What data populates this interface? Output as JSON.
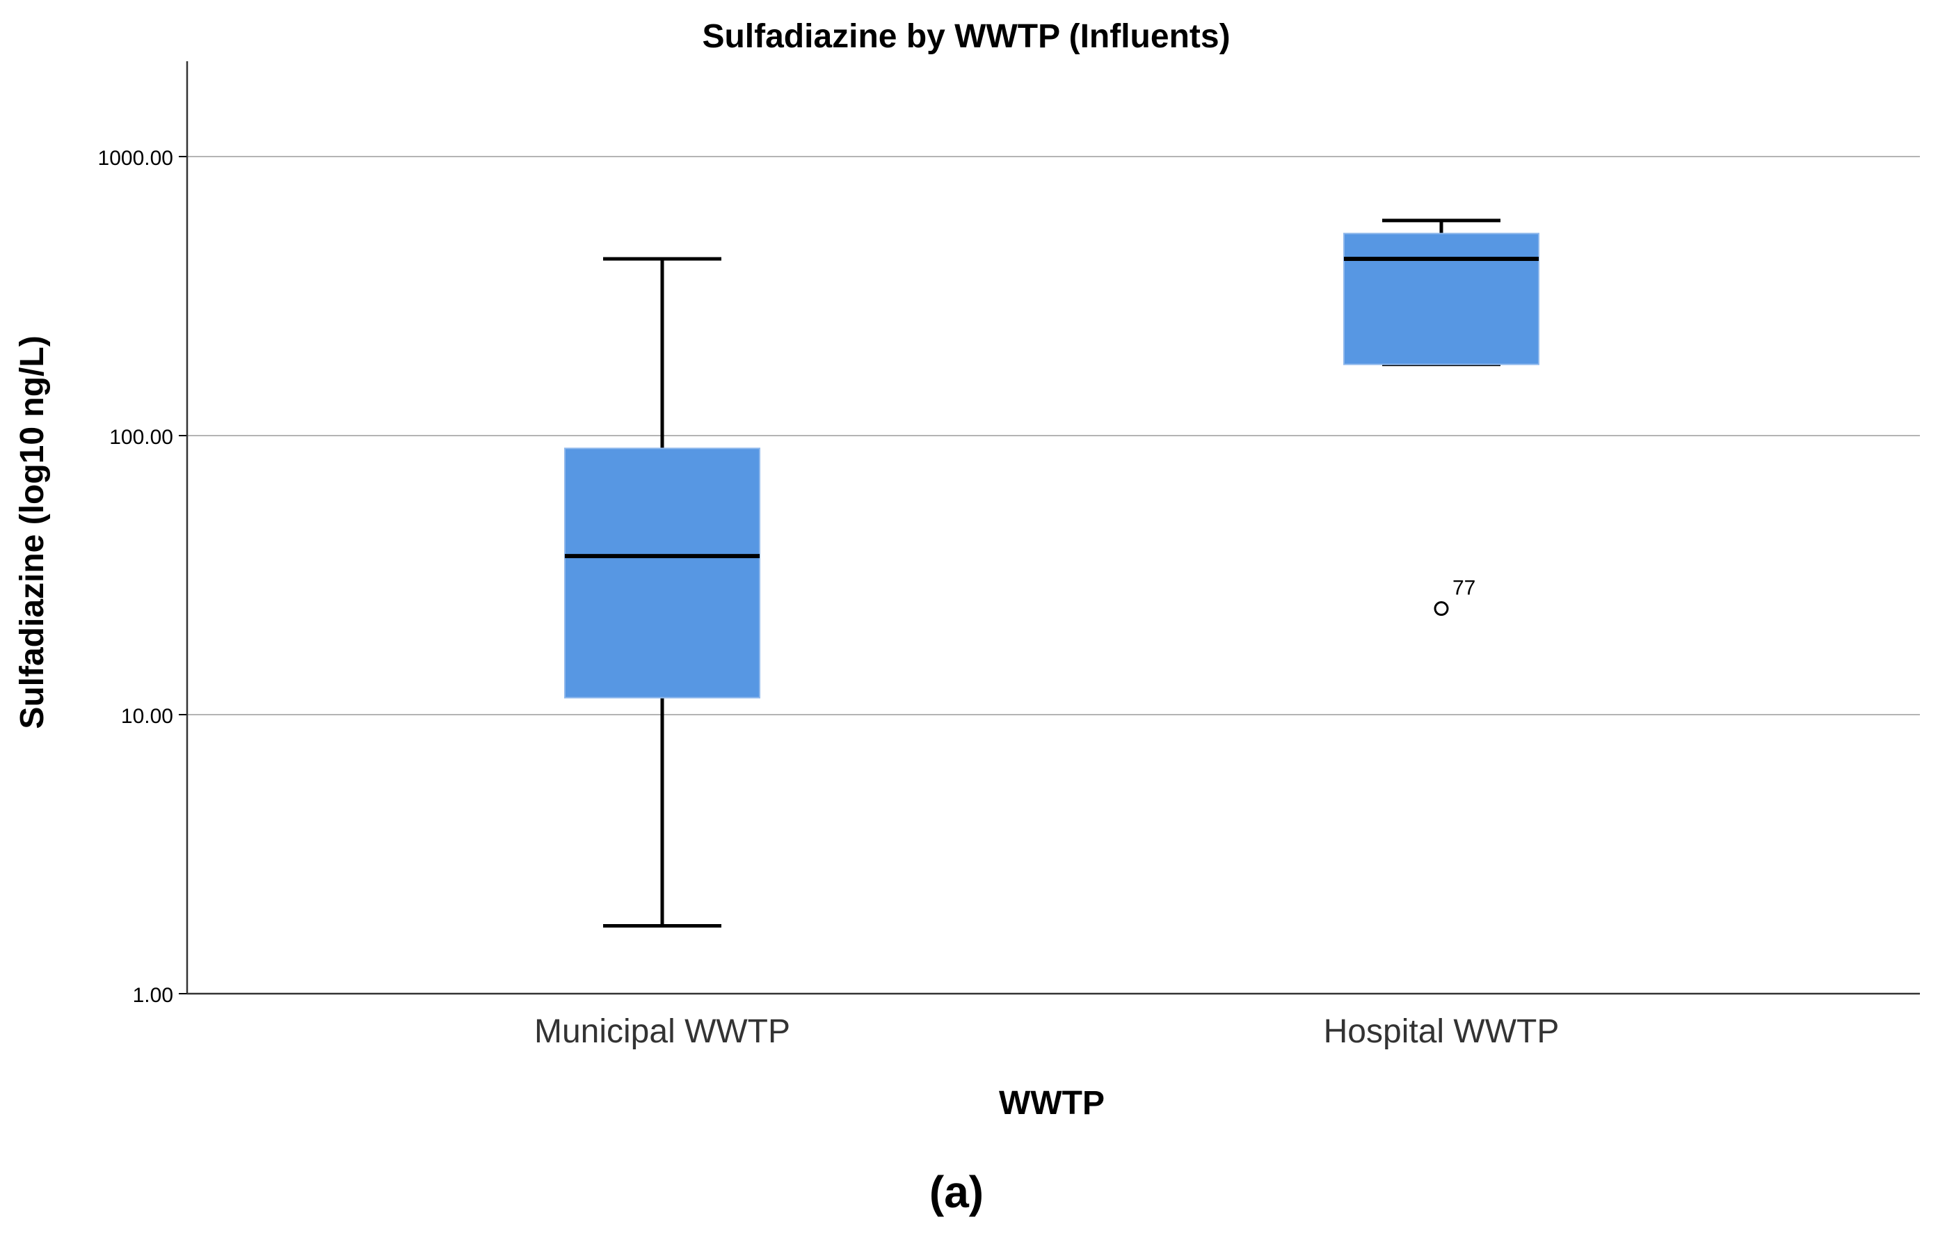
{
  "chart_data": {
    "type": "boxplot",
    "title": "Sulfadiazine by WWTP (Influents)",
    "xlabel": "WWTP",
    "ylabel": "Sulfadiazine (log10 ng/L)",
    "yscale": "log10",
    "ylim": [
      1,
      2000
    ],
    "yticks": [
      {
        "value": 1,
        "label": "1.00"
      },
      {
        "value": 10,
        "label": "10.00"
      },
      {
        "value": 100,
        "label": "100.00"
      },
      {
        "value": 1000,
        "label": "1000.00"
      }
    ],
    "grid": true,
    "categories": [
      "Municipal WWTP",
      "Hospital WWTP"
    ],
    "boxes": [
      {
        "category": "Municipal WWTP",
        "whisker_low": 1.75,
        "q1": 11.5,
        "median": 37,
        "q3": 90,
        "whisker_high": 430,
        "outliers": []
      },
      {
        "category": "Hospital WWTP",
        "whisker_low": 180,
        "q1": 180,
        "median": 430,
        "q3": 530,
        "whisker_high": 590,
        "outliers": [
          {
            "value": 24,
            "label": "77"
          }
        ]
      }
    ],
    "box_color": "#5797e3",
    "median_color": "#000000",
    "whisker_color": "#000000",
    "grid_color": "#b4b4b4",
    "caption": "(a)"
  }
}
